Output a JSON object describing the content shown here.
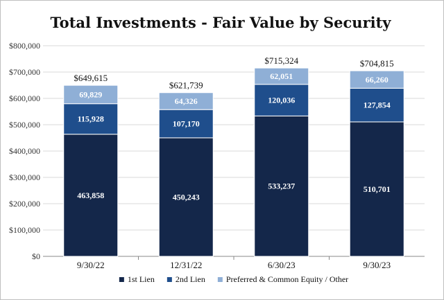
{
  "chart_data": {
    "type": "bar",
    "stacked": true,
    "title": "Total Investments - Fair Value by Security",
    "xlabel": "",
    "ylabel": "",
    "categories": [
      "9/30/22",
      "12/31/22",
      "6/30/23",
      "9/30/23"
    ],
    "ylim": [
      0,
      800000
    ],
    "yticks": [
      0,
      100000,
      200000,
      300000,
      400000,
      500000,
      600000,
      700000,
      800000
    ],
    "ytick_labels": [
      "$0",
      "$100,000",
      "$200,000",
      "$300,000",
      "$400,000",
      "$500,000",
      "$600,000",
      "$700,000",
      "$800,000"
    ],
    "grid": true,
    "legend_position": "bottom",
    "series": [
      {
        "name": "1st Lien",
        "color": "#14274a",
        "label_color": "#ffffff",
        "values": [
          463858,
          450243,
          533237,
          510701
        ],
        "labels": [
          "463,858",
          "450,243",
          "533,237",
          "510,701"
        ]
      },
      {
        "name": "2nd Lien",
        "color": "#1f4e8c",
        "label_color": "#ffffff",
        "values": [
          115928,
          107170,
          120036,
          127854
        ],
        "labels": [
          "115,928",
          "107,170",
          "120,036",
          "127,854"
        ]
      },
      {
        "name": "Preferred & Common Equity / Other",
        "color": "#8fafd6",
        "label_color": "#ffffff",
        "values": [
          69829,
          64326,
          62051,
          66260
        ],
        "labels": [
          "69,829",
          "64,326",
          "62,051",
          "66,260"
        ]
      }
    ],
    "totals": [
      649615,
      621739,
      715324,
      704815
    ],
    "total_labels": [
      "$649,615",
      "$621,739",
      "$715,324",
      "$704,815"
    ]
  }
}
